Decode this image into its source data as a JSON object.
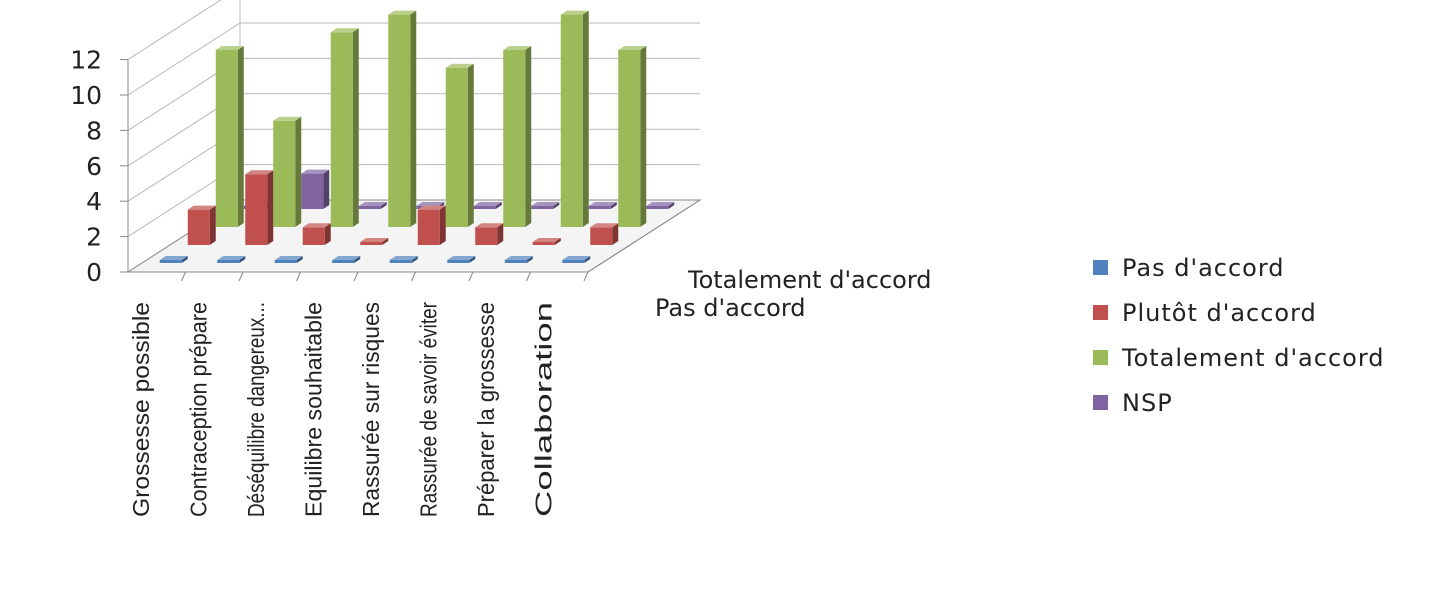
{
  "chart_data": {
    "type": "bar",
    "subtype": "3d-column",
    "categories": [
      "Grossesse possible",
      "Contraception prépare",
      "Déséquilibre dangereux...",
      "Equilibre souhaitable",
      "Rassurée sur risques",
      "Rassurée de savoir éviter",
      "Préparer la grossesse",
      "Collaboration"
    ],
    "series": [
      {
        "name": "Pas d'accord",
        "color": "#4f81bd",
        "values": [
          0,
          0,
          0,
          0,
          0,
          0,
          0,
          0
        ]
      },
      {
        "name": "Plutôt d'accord",
        "color": "#c0504d",
        "values": [
          2,
          4,
          1,
          0,
          2,
          1,
          0,
          1
        ]
      },
      {
        "name": "Totalement d'accord",
        "color": "#9bbb59",
        "values": [
          10,
          6,
          11,
          12,
          9,
          10,
          12,
          10
        ]
      },
      {
        "name": "NSP",
        "color": "#8064a2",
        "values": [
          0,
          2,
          0,
          0,
          0,
          0,
          0,
          0
        ]
      }
    ],
    "depth_labels": [
      "Totalement d'accord",
      "Pas d'accord"
    ],
    "yticks": [
      "0",
      "2",
      "4",
      "6",
      "8",
      "10",
      "12"
    ],
    "ylim": [
      0,
      12
    ],
    "legend_position": "right",
    "grid": true
  }
}
